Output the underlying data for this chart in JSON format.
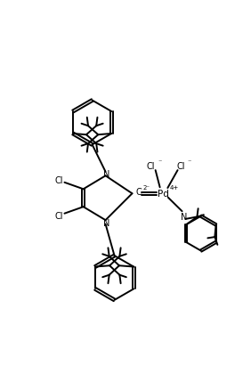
{
  "background_color": "#ffffff",
  "line_color": "#000000",
  "line_width": 1.4,
  "figsize": [
    2.82,
    4.39
  ],
  "dpi": 100,
  "xlim": [
    0,
    10
  ],
  "ylim": [
    0,
    17.5
  ]
}
